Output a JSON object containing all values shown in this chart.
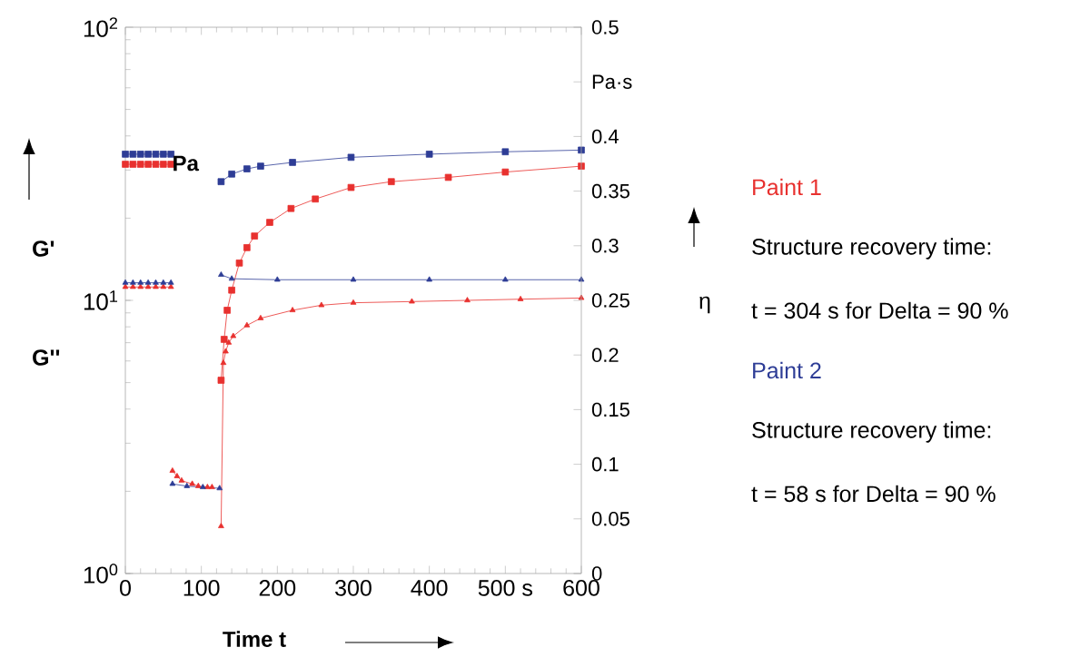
{
  "chart_data": {
    "type": "line",
    "xlabel": "Time t",
    "ylabel": "Pa",
    "log": "y",
    "xlim": [
      0,
      600
    ],
    "xticks": [
      0,
      100,
      200,
      300,
      400,
      {
        "value": 500,
        "label": "500 s"
      },
      600
    ],
    "ylim": [
      1,
      100
    ],
    "yticks": [
      {
        "value": 1,
        "label": "10$^{0}$"
      },
      {
        "value": 10,
        "label": "10$^{1}$"
      },
      {
        "value": 100,
        "label": "10$^{2}$"
      }
    ],
    "y2lim": [
      0,
      0.5
    ],
    "y2ticks": [
      0,
      0.05,
      0.1,
      0.15,
      0.2,
      0.25,
      0.3,
      0.35,
      0.4,
      {
        "value": 0.45,
        "label": "Pa·s"
      },
      0.5
    ],
    "line_style": "solid",
    "series": [
      {
        "color": "#e8312f",
        "marker": "square",
        "x": [
          0,
          10,
          20,
          30,
          40,
          50,
          60,
          90,
          126,
          130,
          134,
          140,
          150,
          160,
          170,
          190,
          218,
          250,
          297,
          350,
          425,
          500,
          600
        ],
        "values": [
          31.5,
          31.5,
          31.5,
          31.5,
          31.5,
          31.5,
          31.5,
          null,
          5.1,
          7.2,
          9.2,
          10.9,
          13.7,
          15.6,
          17.2,
          19.3,
          21.7,
          23.5,
          25.9,
          27.2,
          28.2,
          29.5,
          31
        ]
      },
      {
        "color": "#2e3d96",
        "marker": "square",
        "x": [
          0,
          10,
          20,
          30,
          40,
          50,
          60,
          90,
          126,
          140,
          160,
          178,
          220,
          297,
          400,
          500,
          600
        ],
        "values": [
          34.3,
          34.3,
          34.3,
          34.3,
          34.3,
          34.3,
          34.3,
          null,
          27.2,
          29,
          30.3,
          31,
          32,
          33.4,
          34.3,
          35,
          35.5
        ]
      },
      {
        "color": "#e8312f",
        "marker": "triangle",
        "x": [
          0,
          10,
          20,
          30,
          40,
          50,
          60,
          90,
          126,
          129,
          132,
          136,
          142,
          160,
          178,
          220,
          258,
          300,
          377,
          450,
          520,
          600
        ],
        "values": [
          11.2,
          11.2,
          11.2,
          11.2,
          11.2,
          11.2,
          11.2,
          null,
          1.49,
          5.9,
          6.5,
          7,
          7.4,
          8.1,
          8.6,
          9.2,
          9.6,
          9.8,
          9.9,
          10,
          10.1,
          10.2
        ]
      },
      {
        "color": "#2e3d96",
        "marker": "triangle",
        "x": [
          0,
          10,
          20,
          30,
          40,
          50,
          60,
          90,
          126,
          140,
          200,
          300,
          400,
          500,
          600
        ],
        "values": [
          11.6,
          11.6,
          11.6,
          11.6,
          11.6,
          11.6,
          11.6,
          null,
          12.4,
          12,
          11.9,
          11.9,
          11.9,
          11.9,
          11.9
        ]
      },
      {
        "color": "#e8312f",
        "marker": "triangle",
        "axis": "y2",
        "x": [
          62,
          68,
          74,
          88,
          96,
          108,
          114
        ],
        "values": [
          0.094,
          0.089,
          0.085,
          0.082,
          0.08,
          0.079,
          0.079
        ]
      },
      {
        "color": "#2e3d96",
        "marker": "triangle",
        "axis": "y2",
        "x": [
          62,
          81,
          102,
          124
        ],
        "values": [
          0.082,
          0.08,
          0.079,
          0.078
        ]
      }
    ],
    "annotations": [
      "G'",
      "G''",
      "η",
      "Paint 1",
      "Structure recovery time:",
      "t = 304 s for Delta = 90 %",
      "Paint 2",
      "Structure recovery time:",
      "t = 58 s for Delta = 90 %"
    ]
  }
}
